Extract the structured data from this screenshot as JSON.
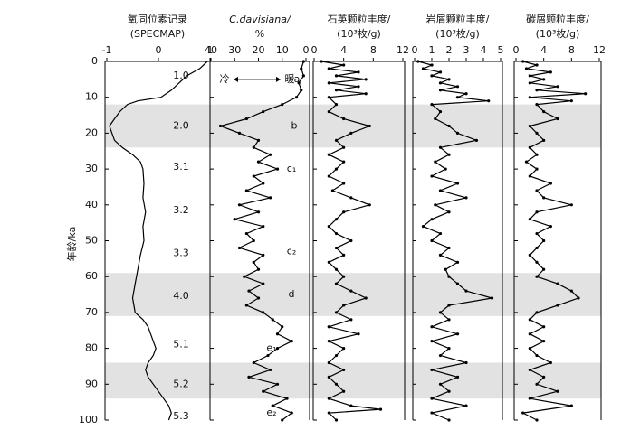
{
  "chart_data": [
    {
      "type": "line",
      "title": [
        "氧同位素记录",
        "(SPECMAP)"
      ],
      "xlim": [
        -1,
        1
      ],
      "xticks": [
        -1,
        0,
        1
      ],
      "ylabel": "年龄/ka",
      "ylim": [
        0,
        100
      ],
      "yticks": [
        0,
        10,
        20,
        30,
        40,
        50,
        60,
        70,
        80,
        90,
        100
      ],
      "bands": [
        [
          12,
          24
        ],
        [
          59,
          71
        ],
        [
          84,
          94
        ]
      ],
      "annotations": [
        "1.0",
        "2.0",
        "3.1",
        "3.2",
        "3.3",
        "4.0",
        "5.1",
        "5.2",
        "5.3"
      ],
      "age": [
        0,
        2,
        4,
        6,
        8,
        10,
        11,
        12,
        14,
        16,
        18,
        20,
        22,
        24,
        26,
        28,
        30,
        34,
        38,
        42,
        46,
        50,
        54,
        58,
        62,
        66,
        70,
        72,
        74,
        76,
        78,
        80,
        82,
        84,
        86,
        88,
        90,
        92,
        94,
        96,
        98,
        100
      ],
      "values": [
        0.95,
        0.8,
        0.55,
        0.4,
        0.25,
        0.05,
        -0.4,
        -0.6,
        -0.75,
        -0.85,
        -0.95,
        -0.9,
        -0.85,
        -0.7,
        -0.5,
        -0.35,
        -0.3,
        -0.28,
        -0.3,
        -0.25,
        -0.3,
        -0.28,
        -0.35,
        -0.4,
        -0.45,
        -0.5,
        -0.45,
        -0.3,
        -0.2,
        -0.15,
        -0.1,
        -0.05,
        -0.1,
        -0.2,
        -0.25,
        -0.2,
        -0.1,
        0.0,
        0.1,
        0.2,
        0.25,
        0.2
      ]
    },
    {
      "type": "line",
      "title": [
        "C.davisiana/",
        "%"
      ],
      "xlim": [
        40,
        0
      ],
      "xticks": [
        40,
        30,
        20,
        10,
        0
      ],
      "annotations": [
        "冷",
        "暖",
        "a",
        "b",
        "c₁",
        "c₂",
        "d",
        "e₁",
        "e₂"
      ],
      "age": [
        0,
        2,
        4,
        6,
        8,
        10,
        12,
        14,
        16,
        18,
        20,
        22,
        24,
        26,
        28,
        30,
        32,
        34,
        36,
        38,
        40,
        42,
        44,
        46,
        48,
        50,
        52,
        54,
        56,
        58,
        60,
        62,
        64,
        66,
        68,
        70,
        72,
        74,
        76,
        78,
        80,
        82,
        84,
        86,
        88,
        90,
        92,
        94,
        96,
        98,
        100
      ],
      "values": [
        1,
        2,
        1,
        3,
        2,
        4,
        10,
        18,
        25,
        36,
        28,
        20,
        22,
        15,
        20,
        12,
        22,
        18,
        25,
        15,
        28,
        20,
        30,
        18,
        25,
        22,
        28,
        18,
        22,
        20,
        26,
        18,
        24,
        20,
        25,
        18,
        14,
        10,
        12,
        6,
        12,
        16,
        22,
        15,
        24,
        12,
        18,
        8,
        14,
        6,
        10
      ]
    },
    {
      "type": "line",
      "title": [
        "石英颗粒丰度/",
        "(10³枚/g)"
      ],
      "xlim": [
        0,
        12
      ],
      "xticks": [
        0,
        4,
        8,
        12
      ],
      "age": [
        0,
        1,
        2,
        3,
        4,
        5,
        6,
        7,
        8,
        9,
        10,
        12,
        14,
        16,
        18,
        20,
        22,
        24,
        26,
        28,
        30,
        32,
        34,
        36,
        38,
        40,
        42,
        44,
        46,
        48,
        50,
        52,
        54,
        56,
        58,
        60,
        62,
        64,
        66,
        68,
        70,
        72,
        74,
        76,
        78,
        80,
        82,
        84,
        86,
        88,
        90,
        92,
        94,
        96,
        97,
        98,
        100
      ],
      "values": [
        1,
        4,
        2,
        6,
        3,
        7,
        2,
        6,
        3,
        7,
        2,
        3,
        2,
        4,
        7.5,
        5,
        3,
        4,
        2,
        4,
        3,
        2,
        4,
        2.5,
        5,
        7.5,
        4,
        3,
        2,
        3,
        5,
        3,
        4,
        2,
        3,
        4,
        3,
        5,
        7,
        4,
        3,
        5,
        2,
        6,
        2,
        4,
        3,
        2,
        4,
        2,
        3,
        4,
        2,
        5,
        9,
        2,
        3
      ]
    },
    {
      "type": "line",
      "title": [
        "岩屑颗粒丰度/",
        "(10³枚/g)"
      ],
      "xlim": [
        0,
        5
      ],
      "xticks": [
        0,
        1,
        2,
        3,
        4,
        5
      ],
      "age": [
        0,
        1,
        2,
        3,
        4,
        5,
        6,
        7,
        8,
        9,
        10,
        11,
        12,
        14,
        16,
        18,
        20,
        22,
        24,
        26,
        28,
        30,
        32,
        34,
        36,
        38,
        40,
        42,
        44,
        46,
        48,
        50,
        52,
        54,
        56,
        58,
        60,
        62,
        64,
        66,
        68,
        70,
        72,
        74,
        76,
        78,
        80,
        82,
        84,
        86,
        88,
        90,
        92,
        94,
        96,
        98,
        100
      ],
      "values": [
        0.2,
        1,
        0.5,
        1.5,
        1,
        2,
        1.5,
        2.5,
        1.5,
        3,
        2.5,
        4.3,
        1,
        1.5,
        1.2,
        2,
        2.5,
        3.6,
        1.5,
        2,
        1.2,
        1.8,
        1,
        2.5,
        1.5,
        3,
        1.2,
        2,
        1,
        0.5,
        1.5,
        1,
        2,
        1.5,
        2.5,
        1.8,
        2,
        2.5,
        3,
        4.5,
        2,
        1.5,
        2,
        1,
        2.5,
        1,
        2,
        1.5,
        3,
        1,
        2.5,
        1.5,
        2,
        1,
        3,
        1,
        2
      ]
    },
    {
      "type": "line",
      "title": [
        "碳屑颗粒丰度/",
        "(10³枚/g)"
      ],
      "xlim": [
        0,
        12
      ],
      "xticks": [
        0,
        4,
        8,
        12
      ],
      "age": [
        0,
        1,
        2,
        3,
        4,
        5,
        6,
        7,
        8,
        9,
        10,
        11,
        12,
        14,
        16,
        18,
        20,
        22,
        24,
        26,
        28,
        30,
        32,
        34,
        36,
        38,
        40,
        42,
        44,
        46,
        48,
        50,
        52,
        54,
        56,
        58,
        60,
        62,
        64,
        66,
        68,
        70,
        72,
        74,
        76,
        78,
        80,
        82,
        84,
        86,
        88,
        90,
        92,
        94,
        96,
        98,
        100
      ],
      "values": [
        1,
        3,
        1.5,
        5,
        2,
        4,
        2,
        6,
        3,
        10,
        2,
        8,
        3,
        4,
        6,
        2,
        3,
        4,
        2,
        3,
        1.5,
        3,
        2,
        5,
        3,
        4,
        8,
        3,
        2,
        5,
        3,
        4,
        3,
        2,
        3,
        4,
        3,
        6,
        8,
        9,
        6,
        3,
        2,
        4,
        2,
        4,
        2,
        3,
        5,
        2,
        4,
        3,
        6,
        2,
        8,
        1,
        3
      ]
    }
  ]
}
